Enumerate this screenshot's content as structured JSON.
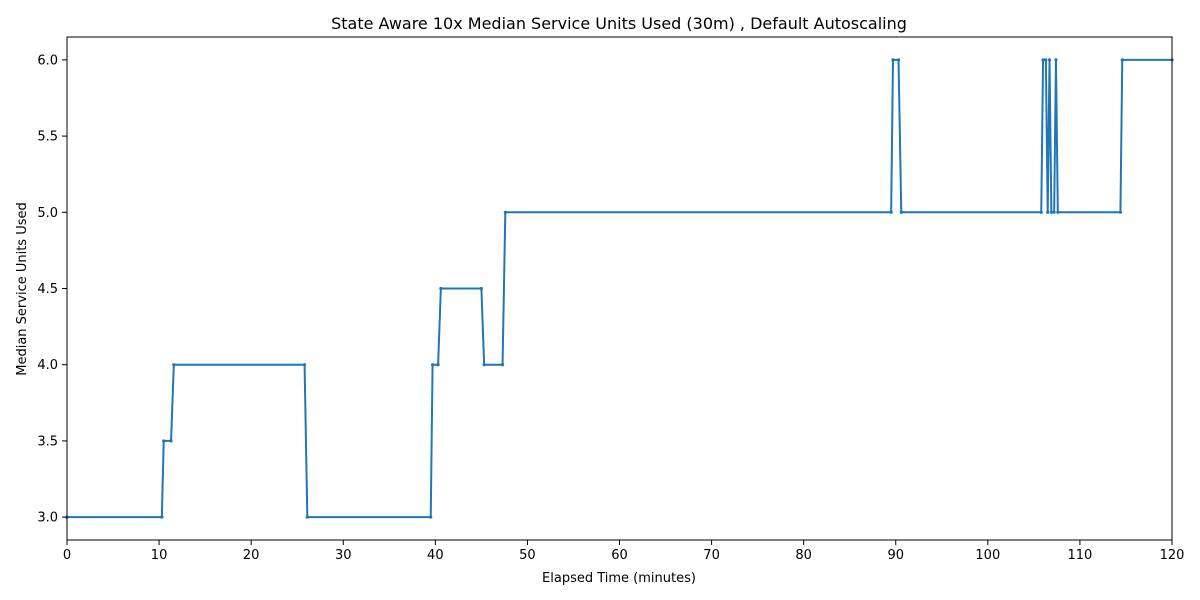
{
  "chart_data": {
    "type": "line",
    "title": "State Aware 10x Median Service Units Used (30m) , Default Autoscaling",
    "xlabel": "Elapsed Time (minutes)",
    "ylabel": "Median Service Units Used",
    "xlim": [
      0,
      120
    ],
    "ylim": [
      2.85,
      6.15
    ],
    "xticks": [
      0,
      10,
      20,
      30,
      40,
      50,
      60,
      70,
      80,
      90,
      100,
      110,
      120
    ],
    "xtick_labels": [
      "0",
      "10",
      "20",
      "30",
      "40",
      "50",
      "60",
      "70",
      "80",
      "90",
      "100",
      "110",
      "120"
    ],
    "yticks": [
      3.0,
      3.5,
      4.0,
      4.5,
      5.0,
      5.5,
      6.0
    ],
    "ytick_labels": [
      "3.0",
      "3.5",
      "4.0",
      "4.5",
      "5.0",
      "5.5",
      "6.0"
    ],
    "grid": false,
    "color": "#1f77b4",
    "series": [
      {
        "x": [
          0,
          10.3,
          10.5,
          11.3,
          11.6,
          25.8,
          26.1,
          39.5,
          39.7,
          40.3,
          40.6,
          45.0,
          45.3,
          47.3,
          47.6,
          89.5,
          89.7,
          90.3,
          90.6,
          105.8,
          106.0,
          106.3,
          106.5,
          106.7,
          106.9,
          107.2,
          107.4,
          107.6,
          114.4,
          114.6,
          120
        ],
        "y": [
          3.0,
          3.0,
          3.5,
          3.5,
          4.0,
          4.0,
          3.0,
          3.0,
          4.0,
          4.0,
          4.5,
          4.5,
          4.0,
          4.0,
          5.0,
          5.0,
          6.0,
          6.0,
          5.0,
          5.0,
          6.0,
          6.0,
          5.0,
          6.0,
          5.0,
          5.0,
          6.0,
          5.0,
          5.0,
          6.0,
          6.0
        ]
      }
    ]
  }
}
